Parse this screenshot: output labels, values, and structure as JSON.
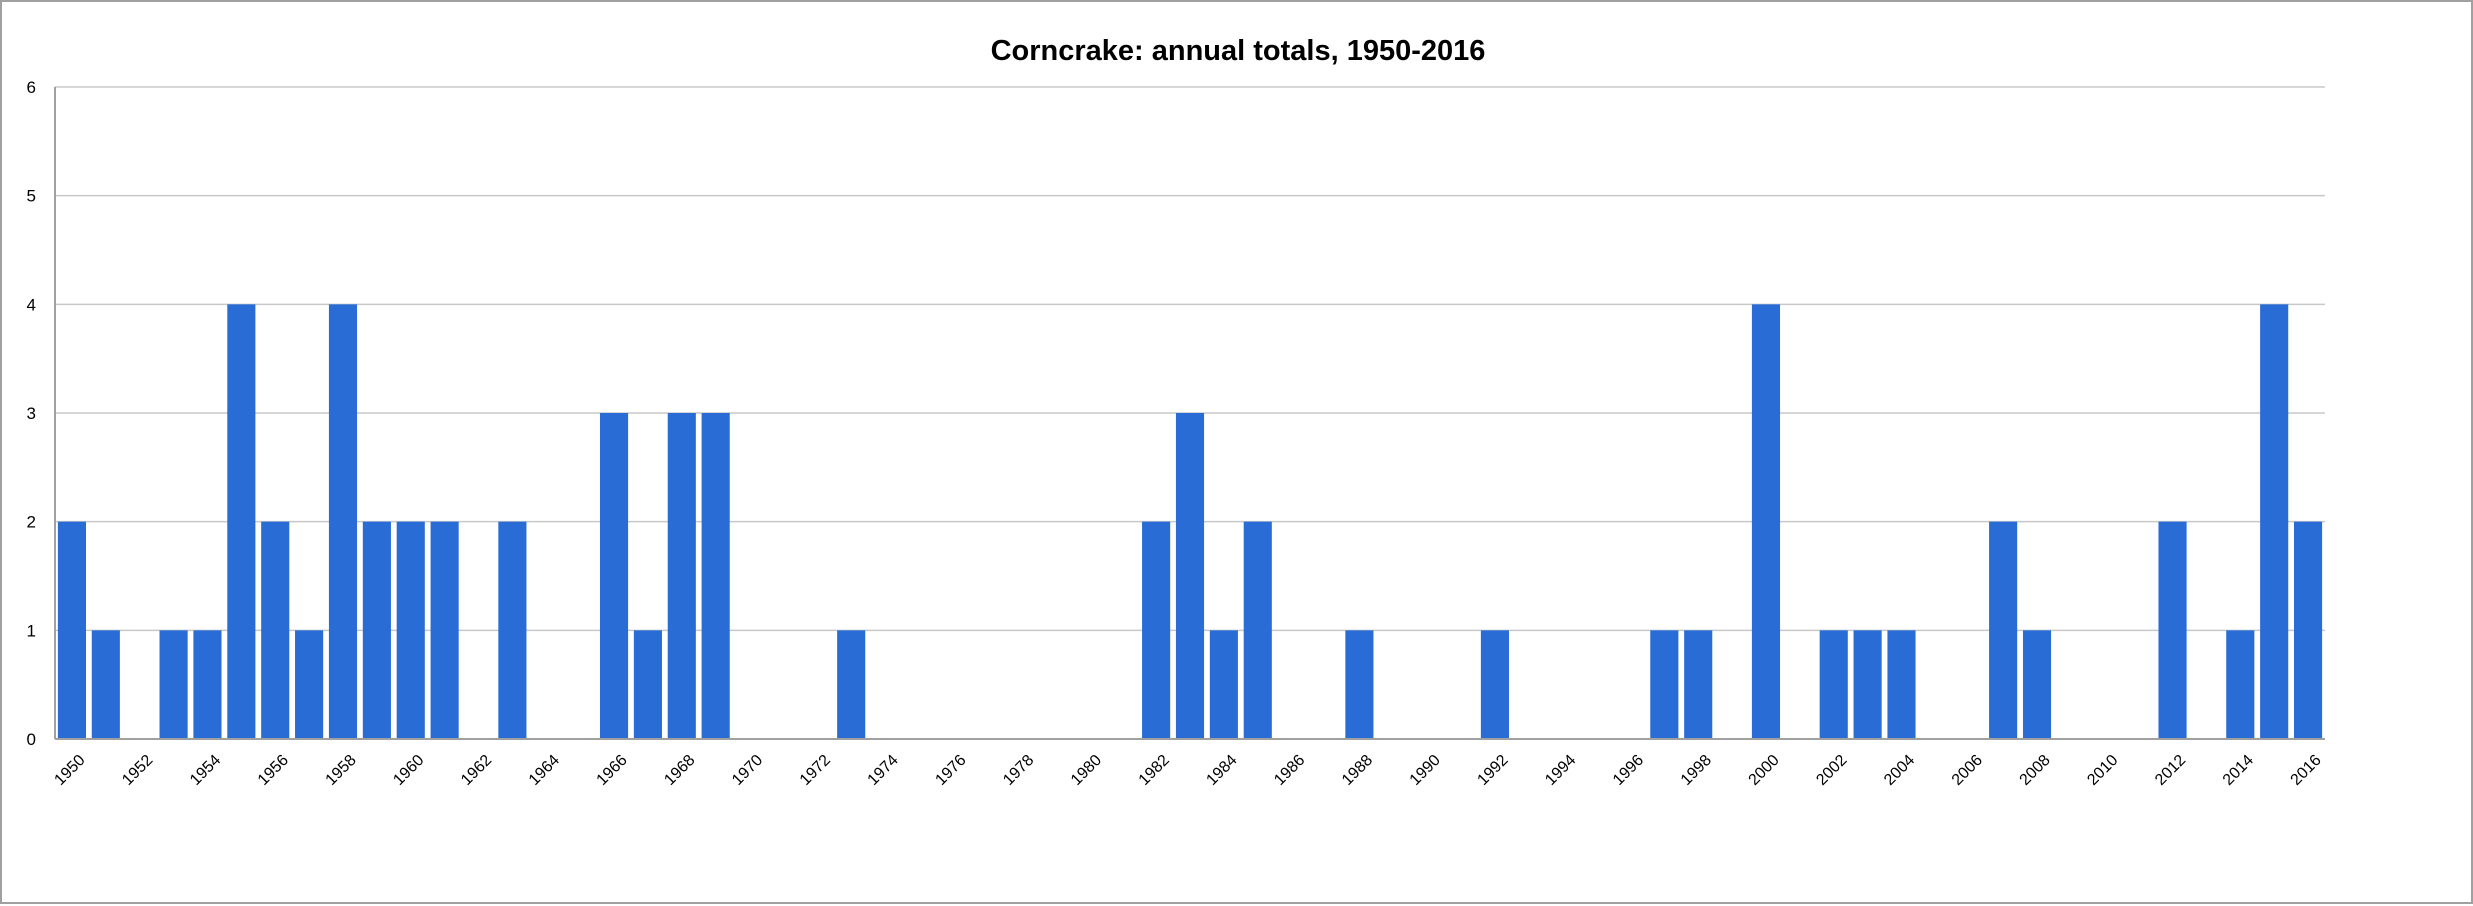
{
  "chart_data": {
    "type": "bar",
    "title": "Corncrake: annual totals, 1950-2016",
    "xlabel": "",
    "ylabel": "",
    "ylim": [
      0,
      6
    ],
    "yticks": [
      0,
      1,
      2,
      3,
      4,
      5,
      6
    ],
    "grid": true,
    "legend": "none",
    "bar_color": "#296cd6",
    "categories": [
      1950,
      1951,
      1952,
      1953,
      1954,
      1955,
      1956,
      1957,
      1958,
      1959,
      1960,
      1961,
      1962,
      1963,
      1964,
      1965,
      1966,
      1967,
      1968,
      1969,
      1970,
      1971,
      1972,
      1973,
      1974,
      1975,
      1976,
      1977,
      1978,
      1979,
      1980,
      1981,
      1982,
      1983,
      1984,
      1985,
      1986,
      1987,
      1988,
      1989,
      1990,
      1991,
      1992,
      1993,
      1994,
      1995,
      1996,
      1997,
      1998,
      1999,
      2000,
      2001,
      2002,
      2003,
      2004,
      2005,
      2006,
      2007,
      2008,
      2009,
      2010,
      2011,
      2012,
      2013,
      2014,
      2015,
      2016
    ],
    "values": [
      2,
      1,
      0,
      1,
      1,
      4,
      2,
      1,
      4,
      2,
      2,
      2,
      0,
      2,
      0,
      0,
      3,
      1,
      3,
      3,
      0,
      0,
      0,
      1,
      0,
      0,
      0,
      0,
      0,
      0,
      0,
      0,
      2,
      3,
      1,
      2,
      0,
      0,
      1,
      0,
      0,
      0,
      1,
      0,
      0,
      0,
      0,
      1,
      1,
      0,
      4,
      0,
      1,
      1,
      1,
      0,
      0,
      2,
      1,
      0,
      0,
      0,
      2,
      0,
      1,
      4,
      2
    ],
    "xtick_labels": [
      "1950",
      "1952",
      "1954",
      "1956",
      "1958",
      "1960",
      "1962",
      "1964",
      "1966",
      "1968",
      "1970",
      "1972",
      "1974",
      "1976",
      "1978",
      "1980",
      "1982",
      "1984",
      "1986",
      "1988",
      "1990",
      "1992",
      "1994",
      "1996",
      "1998",
      "2000",
      "2002",
      "2004",
      "2006",
      "2008",
      "2010",
      "2012",
      "2014",
      "2016"
    ]
  }
}
